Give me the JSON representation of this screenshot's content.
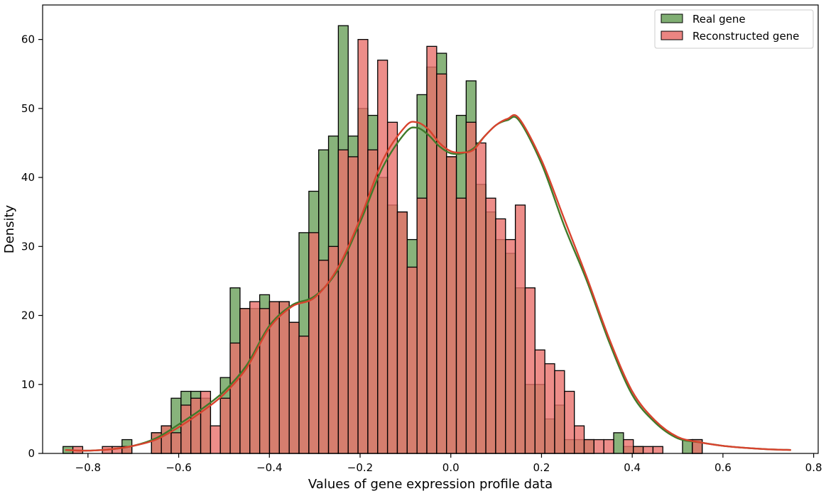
{
  "chart_data": {
    "type": "histogram",
    "xlabel": "Values of gene expression profile data",
    "ylabel": "Density",
    "xlim": [
      -0.9,
      0.81
    ],
    "ylim": [
      0,
      65
    ],
    "x_ticks": [
      {
        "value": -0.8,
        "label": "−0.8"
      },
      {
        "value": -0.6,
        "label": "−0.6"
      },
      {
        "value": -0.4,
        "label": "−0.4"
      },
      {
        "value": -0.2,
        "label": "−0.2"
      },
      {
        "value": 0.0,
        "label": "0.0"
      },
      {
        "value": 0.2,
        "label": "0.2"
      },
      {
        "value": 0.4,
        "label": "0.4"
      },
      {
        "value": 0.6,
        "label": "0.6"
      },
      {
        "value": 0.8,
        "label": "0.8"
      }
    ],
    "y_ticks": [
      {
        "value": 0,
        "label": "0"
      },
      {
        "value": 10,
        "label": "10"
      },
      {
        "value": 20,
        "label": "20"
      },
      {
        "value": 30,
        "label": "30"
      },
      {
        "value": 40,
        "label": "40"
      },
      {
        "value": 50,
        "label": "50"
      },
      {
        "value": 60,
        "label": "60"
      }
    ],
    "legend_position": "top-right",
    "series": [
      {
        "name": "Real gene",
        "color": "#6aa05a",
        "bin_start": -0.855,
        "bin_width": 0.02168,
        "counts": [
          1,
          0,
          0,
          0,
          0,
          0,
          2,
          0,
          0,
          3,
          4,
          8,
          9,
          9,
          8,
          0,
          11,
          24,
          21,
          21,
          23,
          22,
          22,
          19,
          32,
          38,
          44,
          46,
          62,
          46,
          50,
          49,
          40,
          36,
          35,
          31,
          52,
          56,
          58,
          43,
          49,
          54,
          39,
          35,
          31,
          29,
          24,
          10,
          10,
          5,
          7,
          2,
          2,
          2,
          0,
          0,
          3,
          1,
          1,
          0,
          0,
          0,
          0,
          2,
          2
        ],
        "kde_x": [
          -0.85,
          -0.8,
          -0.75,
          -0.7,
          -0.65,
          -0.6,
          -0.55,
          -0.5,
          -0.45,
          -0.4,
          -0.35,
          -0.3,
          -0.25,
          -0.2,
          -0.15,
          -0.1,
          -0.075,
          -0.05,
          -0.025,
          0,
          0.025,
          0.05,
          0.075,
          0.1,
          0.125,
          0.15,
          0.2,
          0.25,
          0.3,
          0.35,
          0.4,
          0.45,
          0.5,
          0.55,
          0.6,
          0.65,
          0.7,
          0.75
        ],
        "kde_y": [
          0.5,
          0.4,
          0.6,
          1.1,
          2.2,
          4.2,
          6.4,
          9.0,
          12.8,
          18.5,
          21.5,
          22.8,
          26.5,
          33.5,
          41.5,
          46.5,
          47.2,
          46.2,
          44.5,
          43.5,
          43.5,
          44.2,
          46.0,
          47.6,
          48.3,
          48.3,
          42.0,
          33.0,
          25.0,
          16.0,
          8.5,
          4.5,
          2.2,
          1.6,
          1.1,
          0.8,
          0.6,
          0.5
        ]
      },
      {
        "name": "Reconstructed gene",
        "color": "#e8706c",
        "bin_start": -0.855,
        "bin_width": 0.02168,
        "counts": [
          0,
          1,
          0,
          0,
          1,
          1,
          1,
          0,
          0,
          3,
          4,
          3,
          7,
          8,
          9,
          4,
          8,
          16,
          21,
          22,
          21,
          22,
          22,
          19,
          17,
          32,
          28,
          30,
          44,
          43,
          60,
          44,
          57,
          48,
          35,
          27,
          37,
          59,
          55,
          43,
          37,
          48,
          45,
          37,
          34,
          31,
          36,
          24,
          15,
          13,
          12,
          9,
          4,
          2,
          2,
          2,
          0,
          2,
          1,
          1,
          1,
          0,
          0,
          0,
          2
        ],
        "kde_x": [
          -0.85,
          -0.8,
          -0.75,
          -0.7,
          -0.65,
          -0.6,
          -0.55,
          -0.5,
          -0.45,
          -0.4,
          -0.35,
          -0.3,
          -0.25,
          -0.2,
          -0.15,
          -0.1,
          -0.075,
          -0.05,
          -0.025,
          0,
          0.025,
          0.05,
          0.075,
          0.1,
          0.125,
          0.15,
          0.2,
          0.25,
          0.3,
          0.35,
          0.4,
          0.45,
          0.5,
          0.55,
          0.6,
          0.65,
          0.7,
          0.75
        ],
        "kde_y": [
          0.5,
          0.4,
          0.6,
          1.1,
          2.0,
          3.8,
          6.0,
          8.6,
          12.4,
          18.2,
          21.3,
          22.6,
          26.8,
          34.0,
          42.5,
          47.4,
          48.0,
          47.0,
          45.0,
          43.8,
          43.6,
          44.0,
          46.0,
          47.6,
          48.5,
          48.6,
          42.5,
          34.0,
          25.5,
          16.5,
          9.0,
          4.8,
          2.4,
          1.6,
          1.1,
          0.8,
          0.6,
          0.5
        ]
      }
    ]
  }
}
